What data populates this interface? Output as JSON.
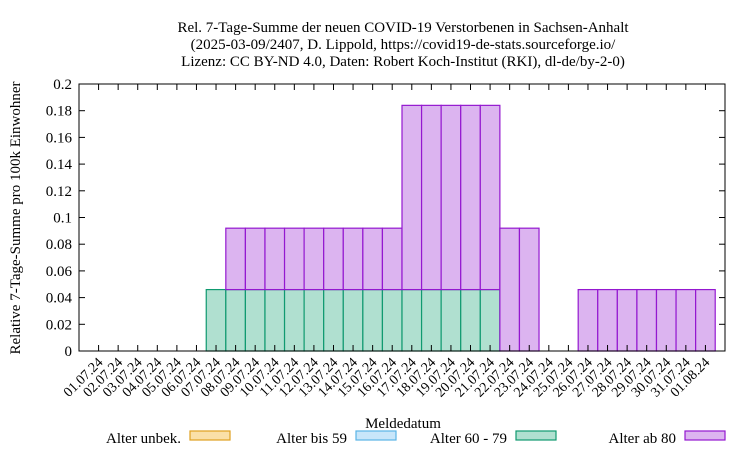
{
  "chart_data": {
    "type": "bar",
    "stacked": true,
    "title_lines": [
      "Rel. 7-Tage-Summe der neuen COVID-19 Verstorbenen in Sachsen-Anhalt",
      "(2025-03-09/2407, D. Lippold, https://covid19-de-stats.sourceforge.io/",
      "Lizenz: CC BY-ND 4.0, Daten: Robert Koch-Institut (RKI), dl-de/by-2-0)"
    ],
    "xlabel": "Meldedatum",
    "ylabel": "Relative 7-Tage-Summe pro 100k Einwohner",
    "ylim": [
      0,
      0.2
    ],
    "yticks": [
      0,
      0.02,
      0.04,
      0.06,
      0.08,
      0.1,
      0.12,
      0.14,
      0.16,
      0.18,
      0.2
    ],
    "ytick_labels": [
      "0",
      "0.02",
      "0.04",
      "0.06",
      "0.08",
      "0.1",
      "0.12",
      "0.14",
      "0.16",
      "0.18",
      "0.2"
    ],
    "categories": [
      "01.07.24",
      "02.07.24",
      "03.07.24",
      "04.07.24",
      "05.07.24",
      "06.07.24",
      "07.07.24",
      "08.07.24",
      "09.07.24",
      "10.07.24",
      "11.07.24",
      "12.07.24",
      "13.07.24",
      "14.07.24",
      "15.07.24",
      "16.07.24",
      "17.07.24",
      "18.07.24",
      "19.07.24",
      "20.07.24",
      "21.07.24",
      "22.07.24",
      "23.07.24",
      "24.07.24",
      "25.07.24",
      "26.07.24",
      "27.07.24",
      "28.07.24",
      "29.07.24",
      "30.07.24",
      "31.07.24",
      "01.08.24"
    ],
    "series": [
      {
        "name": "Alter unbek.",
        "fill": "#fae0a8",
        "stroke": "#e0a020",
        "values": [
          0,
          0,
          0,
          0,
          0,
          0,
          0,
          0,
          0,
          0,
          0,
          0,
          0,
          0,
          0,
          0,
          0,
          0,
          0,
          0,
          0,
          0,
          0,
          0,
          0,
          0,
          0,
          0,
          0,
          0,
          0,
          0
        ]
      },
      {
        "name": "Alter bis 59",
        "fill": "#c8e6fa",
        "stroke": "#5ab4e6",
        "values": [
          0,
          0,
          0,
          0,
          0,
          0,
          0,
          0,
          0,
          0,
          0,
          0,
          0,
          0,
          0,
          0,
          0,
          0,
          0,
          0,
          0,
          0,
          0,
          0,
          0,
          0,
          0,
          0,
          0,
          0,
          0,
          0
        ]
      },
      {
        "name": "Alter 60 - 79",
        "fill": "#b0e0d0",
        "stroke": "#109a70",
        "values": [
          0,
          0,
          0,
          0,
          0,
          0,
          0.046,
          0.046,
          0.046,
          0.046,
          0.046,
          0.046,
          0.046,
          0.046,
          0.046,
          0.046,
          0.046,
          0.046,
          0.046,
          0.046,
          0.046,
          0,
          0,
          0,
          0,
          0,
          0,
          0,
          0,
          0,
          0,
          0
        ]
      },
      {
        "name": "Alter ab 80",
        "fill": "#dcb4f0",
        "stroke": "#9418d0",
        "values": [
          0,
          0,
          0,
          0,
          0,
          0,
          0,
          0.046,
          0.046,
          0.046,
          0.046,
          0.046,
          0.046,
          0.046,
          0.046,
          0.046,
          0.138,
          0.138,
          0.138,
          0.138,
          0.138,
          0.092,
          0.092,
          0,
          0,
          0.046,
          0.046,
          0.046,
          0.046,
          0.046,
          0.046,
          0.046
        ]
      }
    ],
    "grid": false,
    "legend_position": "bottom"
  }
}
